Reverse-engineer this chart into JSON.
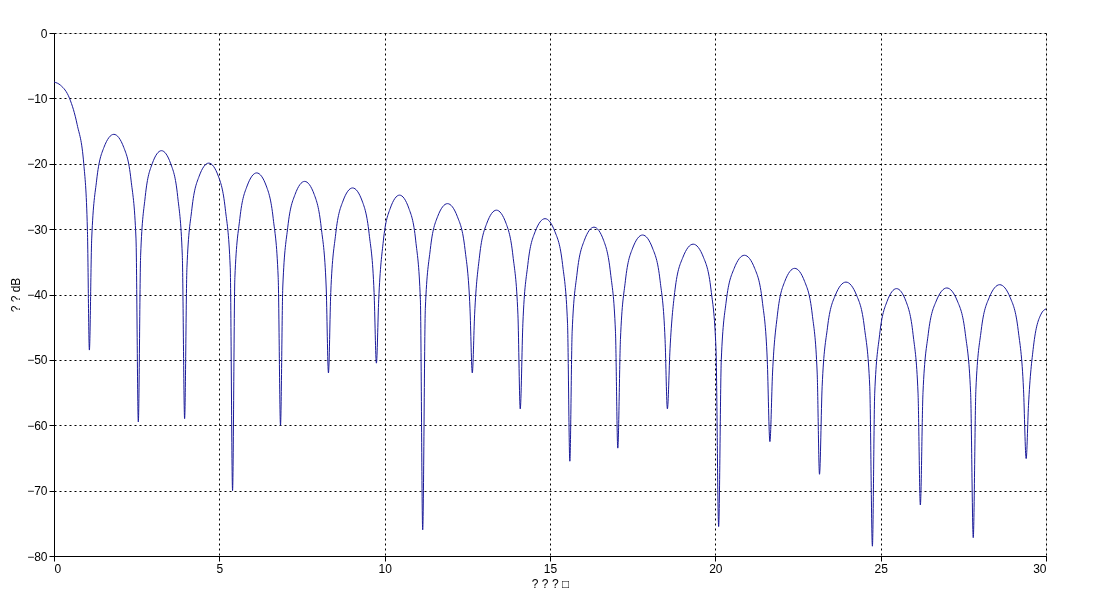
{
  "chart_data": {
    "type": "line",
    "xlabel": "? ? ? □",
    "ylabel": "? ?  dB",
    "xlim": [
      0,
      30
    ],
    "ylim": [
      -80,
      0
    ],
    "xticks": [
      0,
      5,
      10,
      15,
      20,
      25,
      30
    ],
    "yticks": [
      -80,
      -70,
      -60,
      -50,
      -40,
      -30,
      -20,
      -10,
      0
    ],
    "grid": true,
    "marker": "none",
    "line_style": "solid",
    "series": [
      {
        "color": "#1a1a99",
        "x": [
          0,
          0.2,
          0.47,
          0.7,
          0.9,
          1.01,
          1.07,
          1.14,
          1.29,
          1.51,
          1.81,
          2.11,
          2.33,
          2.48,
          2.55,
          2.62,
          2.76,
          2.97,
          3.25,
          3.53,
          3.74,
          3.88,
          3.95,
          4.02,
          4.17,
          4.39,
          4.68,
          4.97,
          5.18,
          5.33,
          5.4,
          5.47,
          5.62,
          5.84,
          6.13,
          6.42,
          6.63,
          6.78,
          6.85,
          6.92,
          7.07,
          7.29,
          7.58,
          7.87,
          8.08,
          8.23,
          8.3,
          8.37,
          8.52,
          8.74,
          9.03,
          9.32,
          9.53,
          9.68,
          9.75,
          9.82,
          9.96,
          10.17,
          10.45,
          10.73,
          10.94,
          11.08,
          11.15,
          11.23,
          11.38,
          11.6,
          11.9,
          12.2,
          12.43,
          12.58,
          12.65,
          12.72,
          12.87,
          13.09,
          13.38,
          13.67,
          13.88,
          14.03,
          14.1,
          14.18,
          14.33,
          14.55,
          14.85,
          15.15,
          15.38,
          15.53,
          15.6,
          15.67,
          15.82,
          16.04,
          16.33,
          16.62,
          16.83,
          16.98,
          17.05,
          17.13,
          17.28,
          17.5,
          17.8,
          18.1,
          18.33,
          18.48,
          18.55,
          18.63,
          18.78,
          19.02,
          19.33,
          19.64,
          19.87,
          20.02,
          20.1,
          20.18,
          20.33,
          20.57,
          20.88,
          21.19,
          21.42,
          21.57,
          21.65,
          21.73,
          21.88,
          22.1,
          22.4,
          22.7,
          22.93,
          23.08,
          23.15,
          23.23,
          23.39,
          23.63,
          23.95,
          24.27,
          24.51,
          24.67,
          24.75,
          24.82,
          24.97,
          25.19,
          25.48,
          25.77,
          25.98,
          26.13,
          26.2,
          26.28,
          26.44,
          26.68,
          27.0,
          27.32,
          27.56,
          27.72,
          27.8,
          27.88,
          28.04,
          28.28,
          28.6,
          28.92,
          29.16,
          29.32,
          29.4,
          29.47,
          29.62,
          29.85,
          30
        ],
        "values": [
          -7.5,
          -8,
          -10,
          -14,
          -20,
          -30,
          -48.5,
          -31.5,
          -22.5,
          -17.5,
          -15.5,
          -17.5,
          -22.5,
          -31.5,
          -59.5,
          -34,
          -25,
          -20,
          -18,
          -20,
          -25,
          -34,
          -59,
          -35.9,
          -26.9,
          -21.9,
          -19.9,
          -21.9,
          -26.9,
          -35.9,
          -70,
          -37.4,
          -28.4,
          -23.4,
          -21.4,
          -23.4,
          -28.4,
          -37.4,
          -60,
          -38.7,
          -29.7,
          -24.7,
          -22.7,
          -24.7,
          -29.7,
          -38.7,
          -52,
          -39.7,
          -30.7,
          -25.7,
          -23.7,
          -25.7,
          -30.7,
          -39.7,
          -50.5,
          -40.8,
          -31.8,
          -26.8,
          -24.8,
          -26.8,
          -31.8,
          -40.8,
          -76,
          -42.1,
          -33.1,
          -28.1,
          -26.1,
          -28.1,
          -33.1,
          -42.1,
          -52,
          -43.1,
          -34.1,
          -29.1,
          -27.1,
          -29.1,
          -34.1,
          -43.1,
          -57.5,
          -44.4,
          -35.4,
          -30.4,
          -28.4,
          -30.4,
          -35.4,
          -44.4,
          -65.5,
          -45.7,
          -36.7,
          -31.7,
          -29.7,
          -31.7,
          -36.7,
          -45.7,
          -63.5,
          -46.9,
          -37.9,
          -32.9,
          -30.9,
          -32.9,
          -37.9,
          -46.9,
          -57.5,
          -48.3,
          -39.3,
          -34.3,
          -32.3,
          -34.3,
          -39.3,
          -48.3,
          -75.5,
          -50,
          -41,
          -36,
          -34,
          -36,
          -41,
          -50,
          -62.5,
          -52,
          -43,
          -38,
          -36,
          -38,
          -43,
          -52,
          -67.5,
          -54.1,
          -45.1,
          -40.1,
          -38.1,
          -40.1,
          -45.1,
          -54.1,
          -78.5,
          -55.1,
          -46.1,
          -41.1,
          -39.1,
          -41.1,
          -46.1,
          -55.1,
          -72.2,
          -55,
          -46,
          -41,
          -39,
          -41,
          -46,
          -55,
          -77.2,
          -54.5,
          -45.5,
          -40.5,
          -38.5,
          -40.5,
          -45.5,
          -54.5,
          -65.1,
          -57,
          -48,
          -43,
          -42.2
        ]
      }
    ]
  }
}
